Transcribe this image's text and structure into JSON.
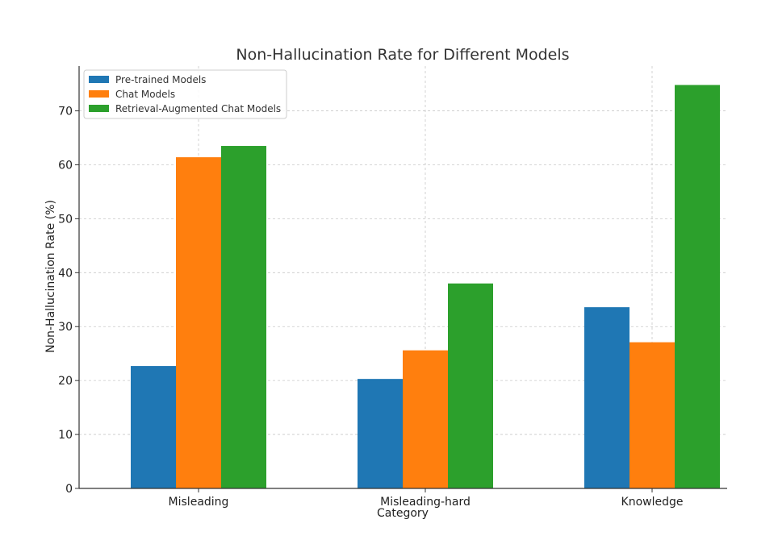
{
  "chart_data": {
    "type": "bar",
    "title": "Non-Hallucination Rate for Different Models",
    "xlabel": "Category",
    "ylabel": "Non-Hallucination Rate (%)",
    "categories": [
      "Misleading",
      "Misleading-hard",
      "Knowledge"
    ],
    "series": [
      {
        "name": "Pre-trained Models",
        "color": "#1f77b4",
        "values": [
          22.7,
          20.3,
          33.6
        ]
      },
      {
        "name": "Chat Models",
        "color": "#ff7f0e",
        "values": [
          61.4,
          25.6,
          27.1
        ]
      },
      {
        "name": "Retrieval-Augmented Chat Models",
        "color": "#2ca02c",
        "values": [
          63.5,
          38.0,
          74.8
        ]
      }
    ],
    "ylim": [
      0,
      78.3
    ],
    "yticks": [
      0,
      10,
      20,
      30,
      40,
      50,
      60,
      70
    ],
    "grid": true,
    "legend_position": "top-left"
  }
}
